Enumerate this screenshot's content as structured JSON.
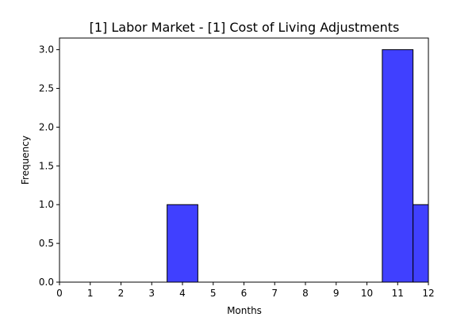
{
  "chart_data": {
    "type": "bar",
    "title": "[1] Labor Market - [1] Cost of Living Adjustments",
    "xlabel": "Months",
    "ylabel": "Frequency",
    "xlim": [
      0,
      12
    ],
    "ylim": [
      0,
      3.15
    ],
    "x_ticks": [
      "0",
      "1",
      "2",
      "3",
      "4",
      "5",
      "6",
      "7",
      "8",
      "9",
      "10",
      "11",
      "12"
    ],
    "y_ticks": [
      "0.0",
      "0.5",
      "1.0",
      "1.5",
      "2.0",
      "2.5",
      "3.0"
    ],
    "bars": [
      {
        "x0": 3.5,
        "x1": 4.5,
        "value": 1
      },
      {
        "x0": 4.5,
        "x1": 5.5,
        "value": 0
      },
      {
        "x0": 5.5,
        "x1": 6.5,
        "value": 0
      },
      {
        "x0": 6.5,
        "x1": 7.5,
        "value": 0
      },
      {
        "x0": 7.5,
        "x1": 8.5,
        "value": 0
      },
      {
        "x0": 8.5,
        "x1": 9.5,
        "value": 0
      },
      {
        "x0": 9.5,
        "x1": 10.5,
        "value": 0
      },
      {
        "x0": 10.5,
        "x1": 11.5,
        "value": 3
      },
      {
        "x0": 11.5,
        "x1": 12.5,
        "value": 1
      }
    ],
    "grid": false,
    "legend": "none",
    "colors": {
      "bar_fill": "#4040ff",
      "bar_edge": "#000000"
    }
  }
}
